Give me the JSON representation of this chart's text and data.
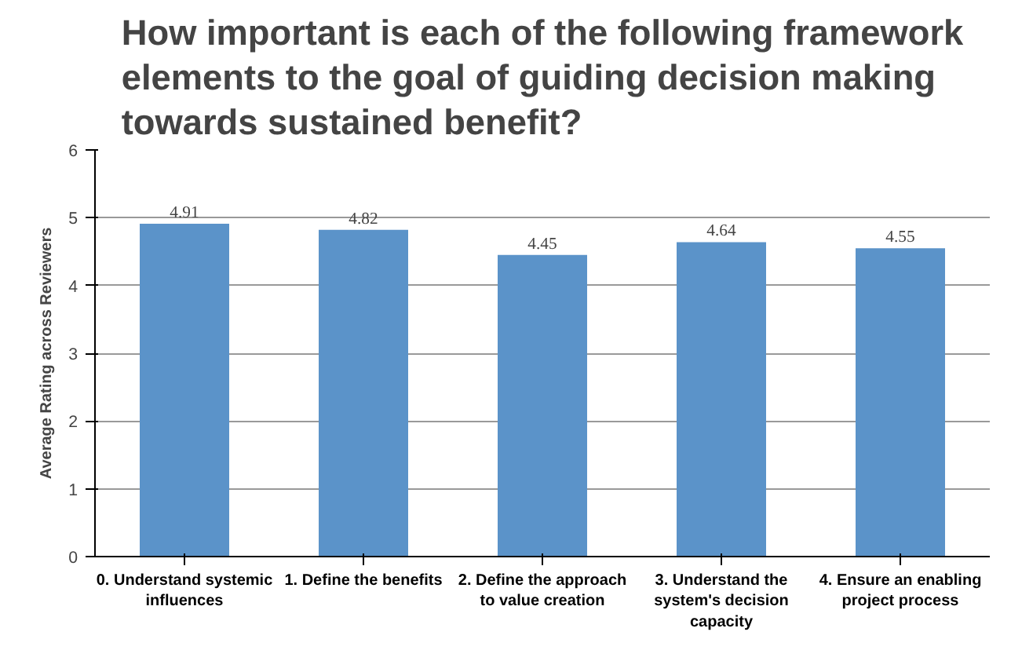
{
  "chart_data": {
    "type": "bar",
    "title": "How important is each of the following framework elements to the goal of guiding decision making towards sustained benefit?",
    "ylabel": "Average Rating across Reviewers",
    "categories": [
      "0. Understand systemic influences",
      "1. Define the benefits",
      "2. Define the approach to value creation",
      "3. Understand the system's decision capacity",
      "4. Ensure an enabling project process"
    ],
    "values": [
      4.91,
      4.82,
      4.45,
      4.64,
      4.55
    ],
    "color": "#5b93c9",
    "data_labels": true,
    "ylim": [
      0,
      6
    ],
    "yticks": [
      0,
      1,
      2,
      3,
      4,
      5,
      6
    ],
    "grid": "y"
  }
}
